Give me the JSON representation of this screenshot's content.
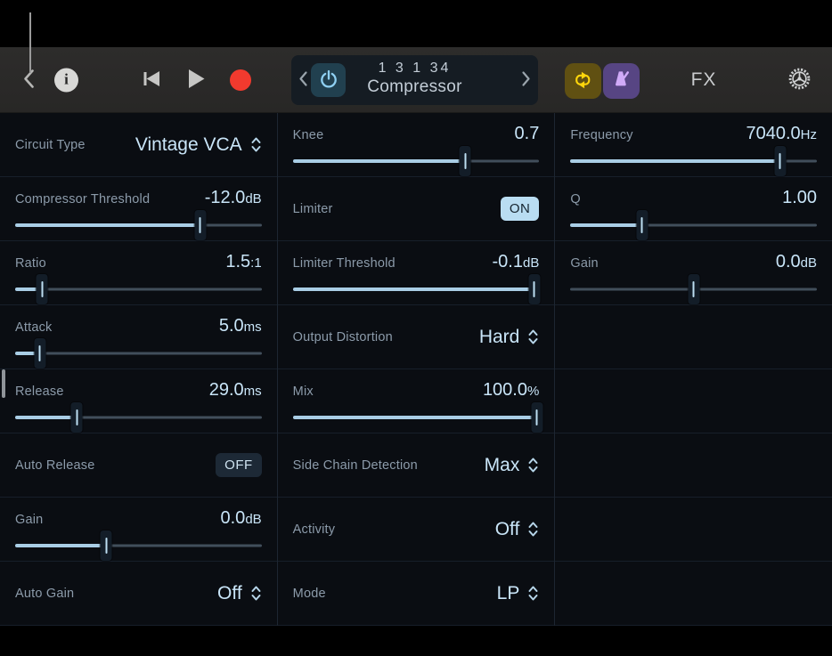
{
  "toolbar": {
    "display": {
      "position": "1 3 1  34",
      "plugin_name": "Compressor"
    },
    "fx_label": "FX"
  },
  "icons": {
    "back-icon": "chevron-left",
    "info-icon": "letter-i-circle",
    "rewind-icon": "skip-to-start",
    "play-icon": "triangle-right",
    "record-icon": "red-circle",
    "power-icon": "power-symbol",
    "prev-icon": "chevron-left",
    "next-icon": "chevron-right",
    "cycle-icon": "loop-arrows",
    "metronome-icon": "metronome",
    "settings-icon": "gear"
  },
  "panel": {
    "columns": [
      {
        "rows": [
          {
            "type": "select",
            "label": "Circuit Type",
            "value": "Vintage VCA"
          },
          {
            "type": "slider",
            "label": "Compressor Threshold",
            "value": "-12.0",
            "unit": "dB",
            "fill_pct": 75
          },
          {
            "type": "slider",
            "label": "Ratio",
            "value": "1.5",
            "unit": ":1",
            "fill_pct": 11
          },
          {
            "type": "slider",
            "label": "Attack",
            "value": "5.0",
            "unit": "ms",
            "fill_pct": 10
          },
          {
            "type": "slider",
            "label": "Release",
            "value": "29.0",
            "unit": "ms",
            "fill_pct": 25
          },
          {
            "type": "toggle",
            "label": "Auto Release",
            "value": "OFF",
            "state": "off"
          },
          {
            "type": "slider",
            "label": "Gain",
            "value": "0.0",
            "unit": "dB",
            "fill_pct": 37
          },
          {
            "type": "select",
            "label": "Auto Gain",
            "value": "Off"
          }
        ]
      },
      {
        "rows": [
          {
            "type": "slider",
            "label": "Knee",
            "value": "0.7",
            "unit": "",
            "fill_pct": 70
          },
          {
            "type": "toggle",
            "label": "Limiter",
            "value": "ON",
            "state": "on"
          },
          {
            "type": "slider",
            "label": "Limiter Threshold",
            "value": "-0.1",
            "unit": "dB",
            "fill_pct": 98
          },
          {
            "type": "select",
            "label": "Output Distortion",
            "value": "Hard"
          },
          {
            "type": "slider",
            "label": "Mix",
            "value": "100.0",
            "unit": "%",
            "fill_pct": 99
          },
          {
            "type": "select",
            "label": "Side Chain Detection",
            "value": "Max"
          },
          {
            "type": "select",
            "label": "Activity",
            "value": "Off"
          },
          {
            "type": "select",
            "label": "Mode",
            "value": "LP"
          }
        ]
      },
      {
        "rows": [
          {
            "type": "slider",
            "label": "Frequency",
            "value": "7040.0",
            "unit": "Hz",
            "fill_pct": 85
          },
          {
            "type": "slider",
            "label": "Q",
            "value": "1.00",
            "unit": "",
            "fill_pct": 29
          },
          {
            "type": "slider",
            "label": "Gain",
            "value": "0.0",
            "unit": "dB",
            "fill_pct": 50,
            "fill_visible": false
          },
          {
            "type": "empty"
          },
          {
            "type": "empty"
          },
          {
            "type": "empty"
          },
          {
            "type": "empty"
          },
          {
            "type": "empty"
          }
        ]
      }
    ]
  },
  "colors": {
    "accent_blue": "#a9cde5",
    "value_text": "#c9e5f8",
    "label_text": "#8c9baa",
    "toggle_on_bg": "#b9ddf2",
    "toggle_off_bg": "#1d2936",
    "record_red": "#f23a2e",
    "cycle_yellow": "#ffd60b",
    "metronome_purple": "#d0aaf8",
    "toolbar_bg": "#2b2a29",
    "content_bg": "#0a0d12"
  }
}
